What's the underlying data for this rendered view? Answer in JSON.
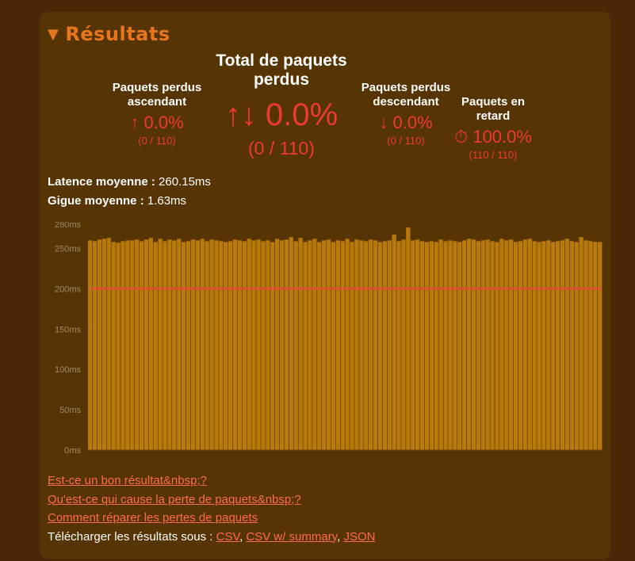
{
  "results": {
    "title": "Résultats",
    "toggle_icon": "triangle-down",
    "stats": {
      "upload": {
        "label": "Paquets perdus ascendant",
        "icon": "↑",
        "value": "0.0%",
        "fraction": "(0 / 110)"
      },
      "total": {
        "label": "Total de paquets perdus",
        "icon": "↑↓",
        "value": "0.0%",
        "fraction": "(0 / 110)"
      },
      "download": {
        "label": "Paquets perdus descendant",
        "icon": "↓",
        "value": "0.0%",
        "fraction": "(0 / 110)"
      },
      "late": {
        "label": "Paquets en retard",
        "icon": "⏱",
        "value": "100.0%",
        "fraction": "(110 / 110)"
      }
    },
    "latency": {
      "label": "Latence moyenne :",
      "value": "260.15ms"
    },
    "jitter": {
      "label": "Gigue moyenne :",
      "value": "1.63ms"
    }
  },
  "chart_data": {
    "type": "bar",
    "unit": "ms",
    "yticks": [
      0,
      50,
      100,
      150,
      200,
      250,
      280
    ],
    "ytick_labels": [
      "0ms",
      "50ms",
      "100ms",
      "150ms",
      "200ms",
      "250ms",
      "280ms"
    ],
    "ylim": [
      0,
      280
    ],
    "threshold": 200,
    "grid": false,
    "bar_color": "#b7790a",
    "threshold_color": "#e84a3a",
    "values": [
      260,
      259,
      261,
      262,
      263,
      258,
      257,
      259,
      260,
      260,
      261,
      259,
      261,
      263,
      258,
      262,
      259,
      261,
      260,
      262,
      258,
      259,
      261,
      260,
      262,
      259,
      261,
      260,
      259,
      258,
      259,
      261,
      260,
      259,
      262,
      260,
      261,
      259,
      260,
      258,
      262,
      260,
      261,
      264,
      259,
      263,
      258,
      260,
      262,
      258,
      260,
      261,
      258,
      260,
      259,
      262,
      258,
      261,
      260,
      259,
      261,
      260,
      258,
      259,
      260,
      267,
      259,
      261,
      276,
      260,
      261,
      259,
      258,
      259,
      258,
      261,
      259,
      260,
      259,
      258,
      260,
      262,
      261,
      259,
      260,
      261,
      259,
      258,
      262,
      260,
      261,
      258,
      259,
      261,
      262,
      259,
      258,
      259,
      260,
      258,
      259,
      260,
      262,
      259,
      258,
      264,
      260,
      259,
      258,
      258
    ]
  },
  "links": {
    "good_result": "Est-ce un bon résultat&nbsp;?",
    "cause": "Qu'est-ce qui cause la perte de paquets&nbsp;?",
    "fix": "Comment réparer les pertes de paquets",
    "download_prefix": "Télécharger les résultats sous :",
    "csv": "CSV",
    "csv_summary": "CSV w/ summary",
    "json": "JSON"
  }
}
